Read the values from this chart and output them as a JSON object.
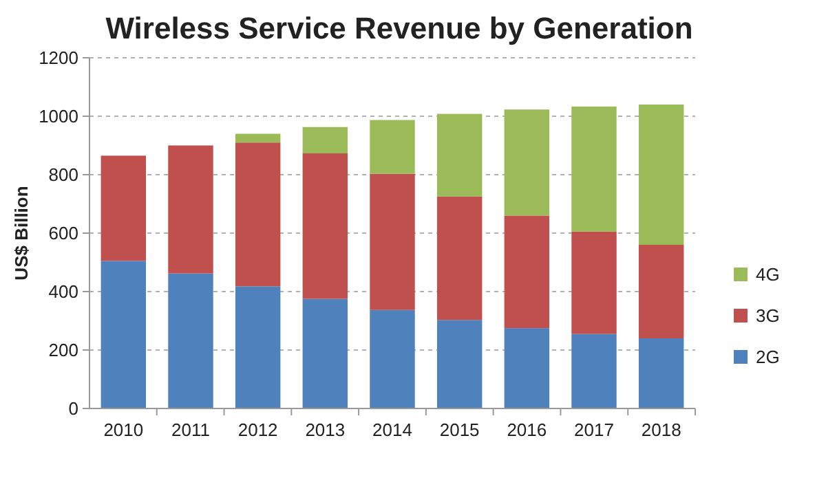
{
  "chart_data": {
    "type": "bar",
    "title": "Wireless Service Revenue by Generation",
    "ylabel": "US$ Billion",
    "categories": [
      "2010",
      "2011",
      "2012",
      "2013",
      "2014",
      "2015",
      "2016",
      "2017",
      "2018"
    ],
    "stacked": true,
    "series": [
      {
        "name": "2G",
        "color": "#4f81bd",
        "values": [
          505,
          462,
          418,
          375,
          337,
          303,
          275,
          255,
          240
        ]
      },
      {
        "name": "3G",
        "color": "#c0504d",
        "values": [
          360,
          438,
          492,
          498,
          466,
          422,
          385,
          350,
          320
        ]
      },
      {
        "name": "4G",
        "color": "#9bbb59",
        "values": [
          0,
          0,
          30,
          90,
          184,
          283,
          363,
          428,
          480
        ]
      }
    ],
    "ylim": [
      0,
      1200
    ],
    "yticks": [
      0,
      200,
      400,
      600,
      800,
      1000,
      1200
    ],
    "grid": "y",
    "legend": "right"
  }
}
